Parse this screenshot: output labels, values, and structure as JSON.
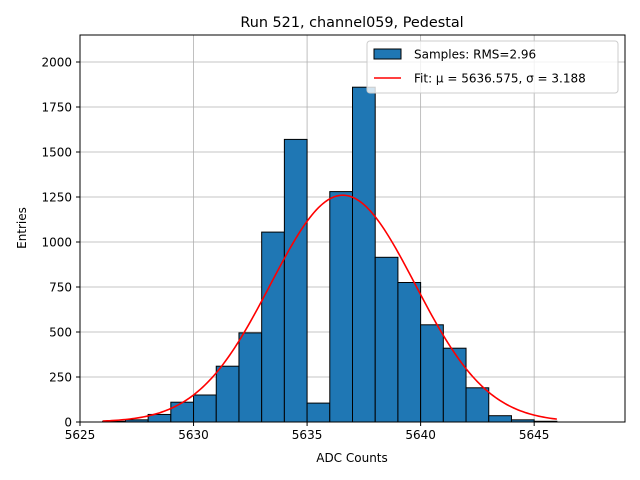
{
  "chart_data": {
    "type": "bar",
    "title": "Run 521, channel059, Pedestal",
    "xlabel": "ADC Counts",
    "ylabel": "Entries",
    "xlim": [
      5625,
      5649
    ],
    "ylim": [
      0,
      2150
    ],
    "xticks": [
      5625,
      5630,
      5635,
      5640,
      5645
    ],
    "yticks": [
      0,
      250,
      500,
      750,
      1000,
      1250,
      1500,
      1750,
      2000
    ],
    "grid": true,
    "legend_placement": "top-right",
    "bin_width": 1,
    "bins": [
      {
        "x": 5626,
        "value": 4
      },
      {
        "x": 5627,
        "value": 12
      },
      {
        "x": 5628,
        "value": 42
      },
      {
        "x": 5629,
        "value": 110
      },
      {
        "x": 5630,
        "value": 150
      },
      {
        "x": 5631,
        "value": 310
      },
      {
        "x": 5632,
        "value": 495
      },
      {
        "x": 5633,
        "value": 1055
      },
      {
        "x": 5634,
        "value": 1570
      },
      {
        "x": 5635,
        "value": 105
      },
      {
        "x": 5636,
        "value": 1280
      },
      {
        "x": 5637,
        "value": 1860
      },
      {
        "x": 5638,
        "value": 915
      },
      {
        "x": 5639,
        "value": 775
      },
      {
        "x": 5640,
        "value": 540
      },
      {
        "x": 5641,
        "value": 410
      },
      {
        "x": 5642,
        "value": 190
      },
      {
        "x": 5643,
        "value": 35
      },
      {
        "x": 5644,
        "value": 12
      },
      {
        "x": 5645,
        "value": 4
      }
    ],
    "fit": {
      "mu": 5636.575,
      "sigma": 3.188,
      "amplitude": 1260,
      "x_range": [
        5626,
        5646
      ]
    },
    "legend": [
      {
        "label": "Samples: RMS=2.96",
        "kind": "patch",
        "color": "#1f77b4"
      },
      {
        "label": "Fit: μ = 5636.575, σ = 3.188",
        "kind": "line",
        "color": "#ff0000"
      }
    ],
    "colors": {
      "bar": "#1f77b4",
      "bar_edge": "#000000",
      "fit": "#ff0000",
      "grid": "#b0b0b0"
    }
  }
}
